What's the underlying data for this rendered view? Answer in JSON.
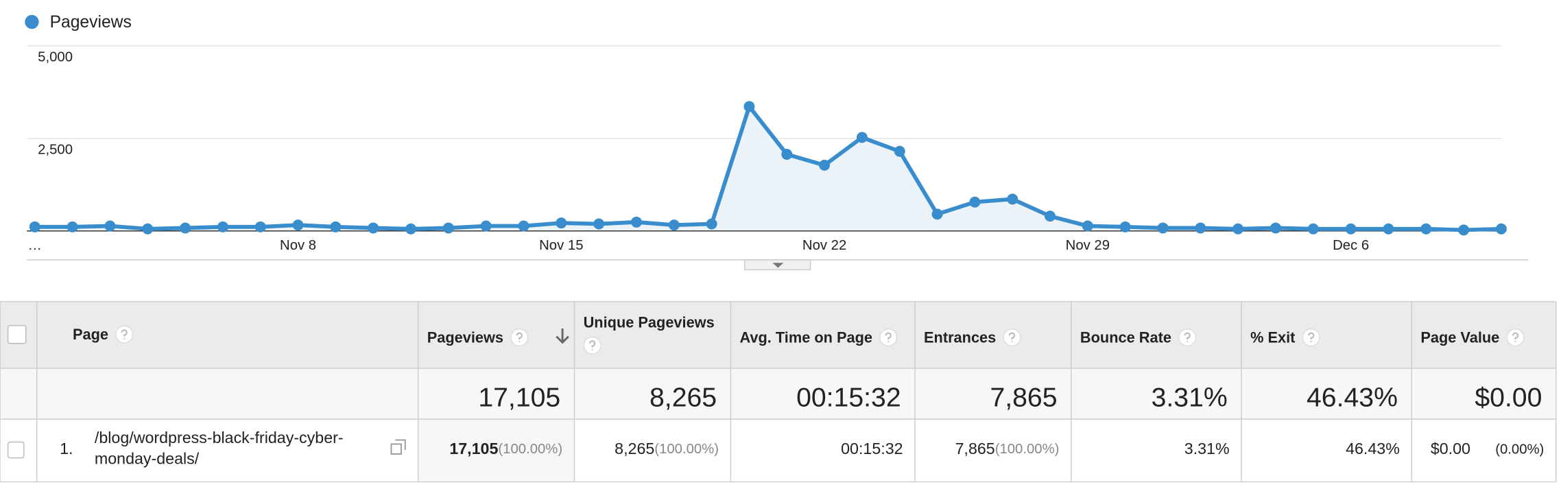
{
  "chart_data": {
    "type": "line",
    "categories": [
      "…",
      null,
      null,
      null,
      null,
      null,
      null,
      "Nov 8",
      null,
      null,
      null,
      null,
      null,
      null,
      "Nov 15",
      null,
      null,
      null,
      null,
      null,
      null,
      "Nov 22",
      null,
      null,
      null,
      null,
      null,
      null,
      "Nov 29",
      null,
      null,
      null,
      null,
      null,
      null,
      "Dec 6",
      null,
      null,
      null,
      null
    ],
    "series": [
      {
        "name": "Pageviews",
        "color": "#3a8dcd",
        "values": [
          110,
          110,
          135,
          55,
          80,
          110,
          110,
          160,
          110,
          80,
          55,
          80,
          135,
          135,
          215,
          190,
          240,
          160,
          190,
          3360,
          2070,
          1775,
          2525,
          2150,
          455,
          780,
          860,
          400,
          135,
          110,
          80,
          80,
          55,
          80,
          55,
          55,
          55,
          55,
          25,
          55
        ]
      }
    ],
    "ylim": [
      0,
      5000
    ],
    "yticks": [
      {
        "value": 2500,
        "label": "2,500"
      },
      {
        "value": 5000,
        "label": "5,000"
      }
    ],
    "grid": true
  },
  "table": {
    "columns": [
      "Page",
      "Pageviews",
      "Unique Pageviews",
      "Avg. Time on Page",
      "Entrances",
      "Bounce Rate",
      "% Exit",
      "Page Value"
    ],
    "totals": [
      "17,105",
      "8,265",
      "00:15:32",
      "7,865",
      "3.31%",
      "46.43%",
      "$0.00"
    ],
    "rows": [
      {
        "index": "1.",
        "page": "/blog/wordpress-black-friday-cyber-monday-deals/",
        "cells": [
          {
            "value": "17,105",
            "share": "(100.00%)"
          },
          {
            "value": "8,265",
            "share": "(100.00%)"
          },
          {
            "value": "00:15:32"
          },
          {
            "value": "7,865",
            "share": "(100.00%)"
          },
          {
            "value": "3.31%"
          },
          {
            "value": "46.43%"
          },
          {
            "value": "$0.00",
            "share": "(0.00%)"
          }
        ]
      }
    ]
  }
}
